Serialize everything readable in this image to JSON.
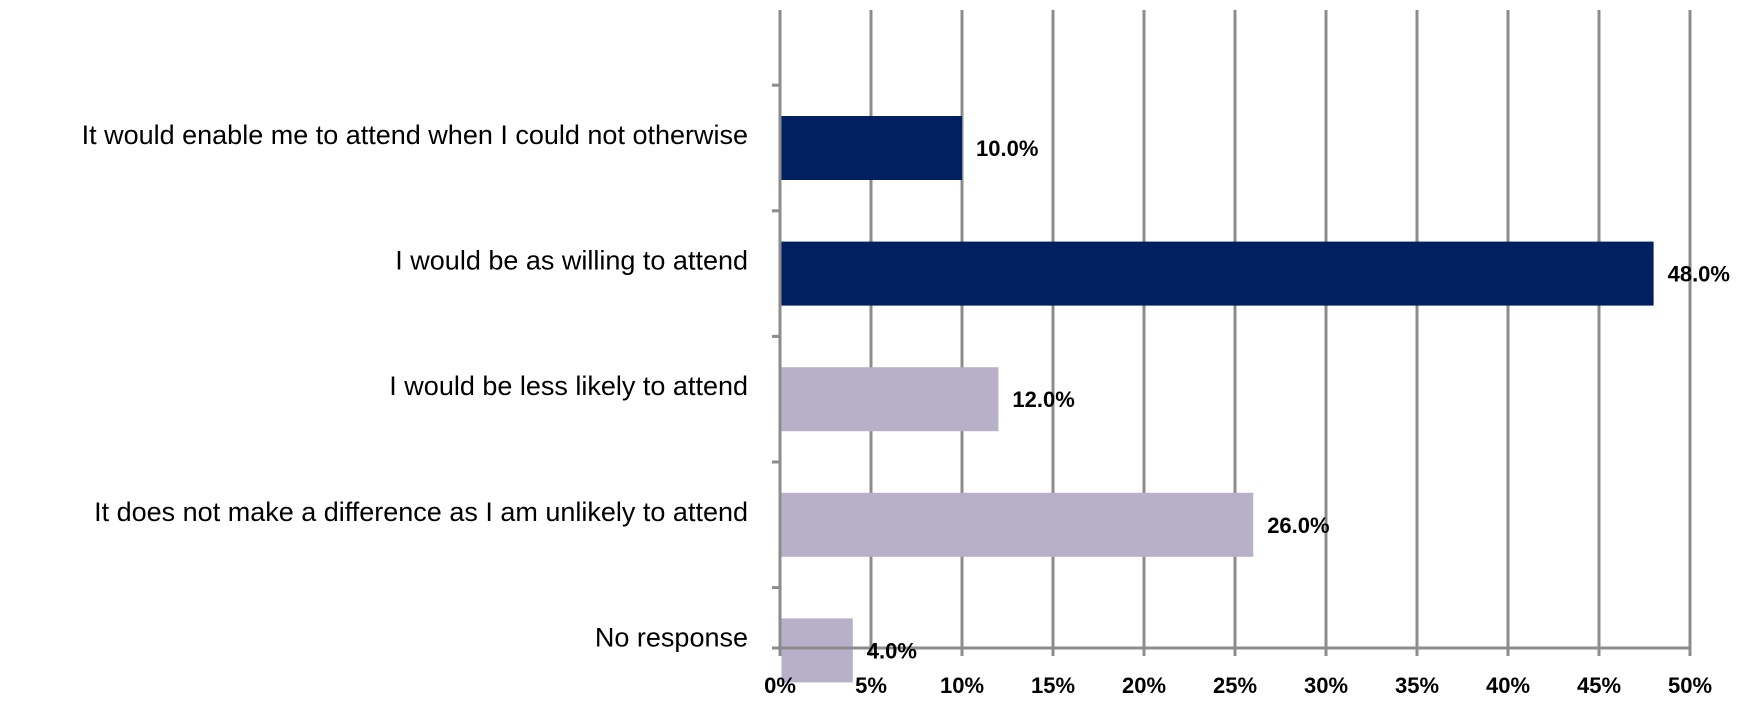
{
  "chart_data": {
    "type": "bar",
    "orientation": "horizontal",
    "categories": [
      "It would enable me to attend when I could not otherwise",
      "I would be as willing to attend",
      "I would be less likely to attend",
      "It does not make a difference as I am unlikely to attend",
      "No response"
    ],
    "values": [
      10.0,
      48.0,
      12.0,
      26.0,
      4.0
    ],
    "data_labels": [
      "10.0%",
      "48.0%",
      "12.0%",
      "26.0%",
      "4.0%"
    ],
    "bar_colors": [
      "#002060",
      "#002060",
      "#B8AFC8",
      "#B8AFC8",
      "#B8AFC8"
    ],
    "xlim": [
      0,
      50
    ],
    "x_ticks": [
      0,
      5,
      10,
      15,
      20,
      25,
      30,
      35,
      40,
      45,
      50
    ],
    "x_tick_labels": [
      "0%",
      "5%",
      "10%",
      "15%",
      "20%",
      "25%",
      "30%",
      "35%",
      "40%",
      "45%",
      "50%"
    ],
    "title": "",
    "xlabel": "",
    "ylabel": "",
    "grid": "vertical",
    "gridline_color": "#8C8C8C",
    "legend": "none"
  }
}
